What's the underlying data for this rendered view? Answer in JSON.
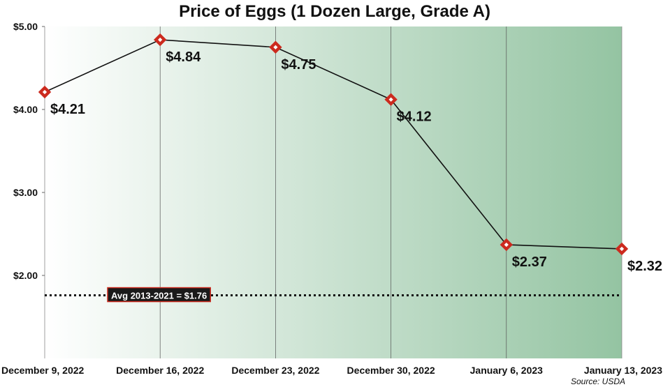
{
  "chart_data": {
    "type": "line",
    "title": "Price of Eggs (1 Dozen Large, Grade A)",
    "categories": [
      "December 9, 2022",
      "December 16, 2022",
      "December 23, 2022",
      "December 30, 2022",
      "January 6, 2023",
      "January 13, 2023"
    ],
    "values": [
      4.21,
      4.84,
      4.75,
      4.12,
      2.37,
      2.32
    ],
    "data_labels": [
      "$4.21",
      "$4.84",
      "$4.75",
      "$4.12",
      "$2.37",
      "$2.32"
    ],
    "yticks": [
      2,
      3,
      4,
      5
    ],
    "ytick_labels": [
      "$2.00",
      "$3.00",
      "$4.00",
      "$5.00"
    ],
    "ylim": [
      1.0,
      5.0
    ],
    "grid": "vertical",
    "reference_line": {
      "value": 1.76,
      "label": "Avg 2013-2021 = $1.76"
    },
    "source": "Source: USDA",
    "colors": {
      "line": "#111111",
      "marker": "#cc2a1e",
      "background_light": "#ffffff",
      "background_dark": "#94c4a2",
      "label_box": "#1a1a1a"
    }
  }
}
